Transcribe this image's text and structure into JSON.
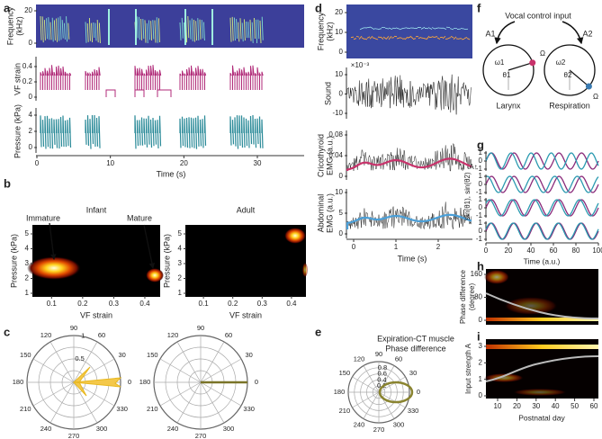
{
  "panel_labels": [
    "a",
    "b",
    "c",
    "d",
    "e",
    "f",
    "g",
    "h",
    "i"
  ],
  "a": {
    "y_labels": {
      "frequency": [
        "Frequency",
        "(kHz)"
      ],
      "strain": "VF strain",
      "pressure": "Pressure (kPa)"
    },
    "freq_ticks": [
      20,
      0
    ],
    "strain_ticks": [
      0.4,
      0.2,
      0
    ],
    "pressure_ticks": [
      4,
      2,
      0
    ],
    "x_ticks": [
      0,
      10,
      20,
      30
    ],
    "x_label": "Time (s)"
  },
  "b": {
    "panels": [
      {
        "title": "Infant",
        "annotations": [
          "Immature",
          "Mature"
        ],
        "y_label": "Pressure (kPa)",
        "y_ticks": [
          5,
          4,
          3,
          2,
          1
        ],
        "x_ticks": [
          0.1,
          0.2,
          0.3,
          0.4
        ],
        "x_label": "VF strain"
      },
      {
        "title": "Adult",
        "y_label": "Pressure (kPa)",
        "y_ticks": [
          5,
          4,
          3,
          2,
          1
        ],
        "x_ticks": [
          0.1,
          0.2,
          0.3,
          0.4
        ],
        "x_label": "VF strain"
      }
    ]
  },
  "c": {
    "polars": [
      {
        "angle_ticks": [
          90,
          60,
          30,
          0,
          330,
          300,
          270,
          240,
          210,
          180,
          150,
          120
        ],
        "radial_ticks": [
          0.5,
          1
        ]
      },
      {
        "angle_ticks": [
          90,
          60,
          30,
          0,
          330,
          300,
          270,
          240,
          210,
          180,
          150,
          120
        ]
      }
    ]
  },
  "d": {
    "spectrogram": {
      "y_label": [
        "Frequency",
        "(kHz)"
      ],
      "y_ticks": [
        20,
        10,
        0
      ]
    },
    "sound": {
      "y_label": "Sound",
      "scale": "×10⁻³",
      "y_ticks": [
        10,
        0,
        -10
      ]
    },
    "ct": {
      "y_label": [
        "Cricothyroid",
        "EMG (a.u.)"
      ],
      "y_ticks": [
        0.08,
        0.04,
        0
      ]
    },
    "abdominal": {
      "y_label": [
        "Abdominal",
        "EMG (a.u.)"
      ],
      "y_ticks": [
        10,
        5,
        0
      ]
    },
    "x_ticks": [
      0,
      1,
      2
    ],
    "x_label": "Time (s)"
  },
  "e": {
    "title": [
      "Expiration-CT muscle",
      "Phase difference"
    ],
    "angle_ticks": [
      90,
      60,
      30,
      0,
      330,
      300,
      270,
      240,
      210,
      180,
      150,
      120
    ],
    "radial_ticks": [
      0.2,
      0.4,
      0.6,
      0.8
    ]
  },
  "f": {
    "title": "Vocal control input",
    "inputs": [
      "A1",
      "A2"
    ],
    "omega": [
      "Ω",
      "Ω"
    ],
    "larynx": {
      "freq": "ω1",
      "phase": "θ1",
      "label": "Larynx"
    },
    "respiration": {
      "freq": "ω2",
      "phase": "θ2",
      "label": "Respiration"
    }
  },
  "g": {
    "y_label": "sin(θ1), sin(θ2)",
    "arrow_label": "A↑",
    "rows": [
      {
        "y_ticks": [
          1,
          0,
          -1
        ]
      },
      {
        "y_ticks": [
          1,
          0,
          -1
        ]
      },
      {
        "y_ticks": [
          1,
          0,
          -1
        ]
      },
      {
        "y_ticks": [
          1,
          0,
          -1
        ]
      }
    ],
    "x_ticks": [
      0,
      20,
      40,
      60,
      80,
      100
    ],
    "x_label": "Time (a.u.)"
  },
  "h": {
    "y_label": [
      "Phase difference",
      "(degree)"
    ],
    "y_ticks": [
      160,
      80,
      0
    ]
  },
  "i": {
    "y_label": "Input strength A",
    "y_ticks": [
      3,
      2,
      1,
      0
    ],
    "x_ticks": [
      10,
      20,
      30,
      40,
      50,
      60
    ],
    "x_label": "Postnatal day"
  }
}
